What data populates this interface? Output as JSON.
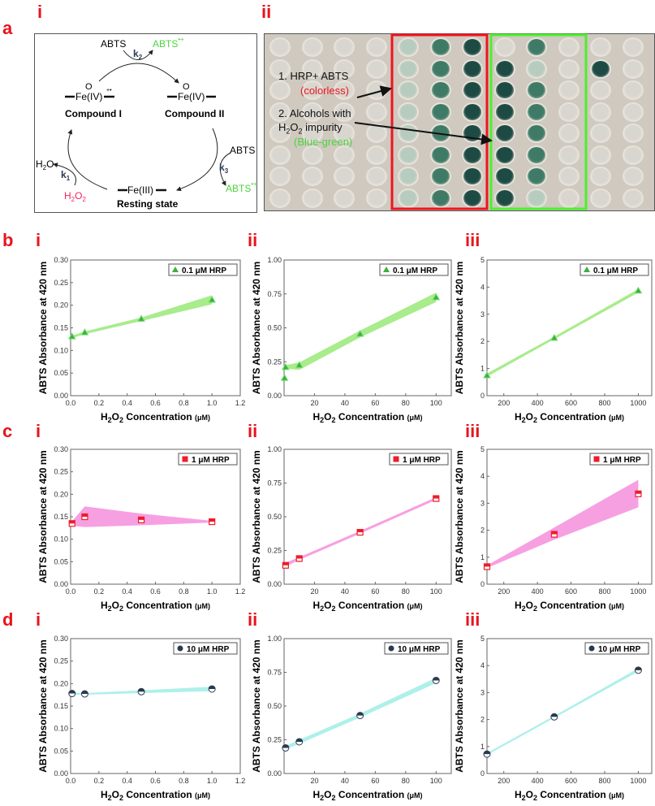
{
  "panel_labels": {
    "a": "a",
    "b": "b",
    "c": "c",
    "d": "d"
  },
  "sub_labels": [
    "i",
    "ii",
    "iii"
  ],
  "diagram": {
    "abts_top": "ABTS",
    "abts_radical_top": "ABTS",
    "radical_sup": "•+",
    "k2": "k",
    "k2_sub": "2",
    "compound1_fe": "Fe(IV)",
    "compound1_oxo": "O",
    "compound1_sup": "+•",
    "compound1_label": "Compound I",
    "compound2_fe": "Fe(IV)",
    "compound2_oxo": "O",
    "compound2_label": "Compound II",
    "abts_right": "ABTS",
    "k3": "k",
    "k3_sub": "3",
    "abts_radical_right": "ABTS",
    "resting_fe": "Fe(III)",
    "resting_label": "Resting state",
    "h2o": "H",
    "h2o_sub": "2",
    "h2o_tail": "O",
    "k1": "k",
    "k1_sub": "1",
    "h2o2_a": "H",
    "h2o2_sub1": "2",
    "h2o2_b": "O",
    "h2o2_sub2": "2",
    "colors": {
      "green": "#4cd43c",
      "red": "#f0245a",
      "k": "#2b3a55"
    }
  },
  "photo": {
    "label1": "1. HRP+ ABTS",
    "label1_note": "(colorless)",
    "label2_line1": "2. Alcohols with",
    "label2_line2_a": "H",
    "label2_line2_sub": "2",
    "label2_line2_b": "O",
    "label2_line2_sub2": "2",
    "label2_line2_c": " impurity",
    "label2_note": "(Blue-green)",
    "colors": {
      "red_box": "#f0141e",
      "green_box": "#4cf02c",
      "colorless_text": "#f0141e",
      "bluegreen_text": "#4cd43c"
    }
  },
  "axis_text": {
    "ylabel": "ABTS Absorbance at 420 nm",
    "xlabel_a": "H",
    "xlabel_sub1": "2",
    "xlabel_b": "O",
    "xlabel_sub2": "2",
    "xlabel_c": " Concentration ",
    "xlabel_unit": "(μM)"
  },
  "chart_data": [
    {
      "id": "b-i",
      "type": "scatter",
      "legend": "0.1 μM HRP",
      "legend_position": "top-right",
      "marker": "triangle",
      "color": "#3fae3f",
      "band_color": "#a8ec8c",
      "x": [
        0.01,
        0.1,
        0.5,
        1.0
      ],
      "y": [
        0.131,
        0.14,
        0.17,
        0.212
      ],
      "band": [
        [
          0.01,
          0.127,
          0.133
        ],
        [
          0.1,
          0.136,
          0.142
        ],
        [
          0.5,
          0.165,
          0.173
        ],
        [
          1.0,
          0.202,
          0.222
        ]
      ],
      "xlim": [
        0,
        1.2
      ],
      "ylim": [
        0,
        0.3
      ],
      "xticks": [
        "0.0",
        "0.2",
        "0.4",
        "0.6",
        "0.8",
        "1.0",
        "1.2"
      ],
      "yticks": [
        "0.00",
        "0.05",
        "0.10",
        "0.15",
        "0.20",
        "0.25",
        "0.30"
      ]
    },
    {
      "id": "b-ii",
      "type": "scatter",
      "legend": "0.1 μM HRP",
      "legend_position": "top-right",
      "marker": "triangle",
      "color": "#3fae3f",
      "band_color": "#a8ec8c",
      "x": [
        0.3,
        1,
        10,
        50,
        100
      ],
      "y": [
        0.13,
        0.21,
        0.225,
        0.455,
        0.725
      ],
      "band": [
        [
          1,
          0.2,
          0.225
        ],
        [
          10,
          0.19,
          0.245
        ],
        [
          50,
          0.43,
          0.48
        ],
        [
          100,
          0.69,
          0.76
        ]
      ],
      "xlim": [
        0,
        110
      ],
      "ylim": [
        0,
        1
      ],
      "xticks": [
        "20",
        "40",
        "60",
        "80",
        "100"
      ],
      "yticks": [
        "0.00",
        "0.25",
        "0.50",
        "0.75",
        "1.00"
      ]
    },
    {
      "id": "b-iii",
      "type": "scatter",
      "legend": "0.1 μM HRP",
      "legend_position": "top-right",
      "marker": "triangle",
      "color": "#3fae3f",
      "band_color": "#a8ec8c",
      "x": [
        100,
        500,
        1000
      ],
      "y": [
        0.75,
        2.13,
        3.87
      ],
      "band": [
        [
          100,
          0.7,
          0.82
        ],
        [
          500,
          2.08,
          2.18
        ],
        [
          1000,
          3.8,
          3.93
        ]
      ],
      "xlim": [
        100,
        1080
      ],
      "ylim": [
        0,
        5
      ],
      "xticks": [
        "200",
        "400",
        "600",
        "800",
        "1000"
      ],
      "yticks": [
        "0",
        "1",
        "2",
        "3",
        "4",
        "5"
      ]
    },
    {
      "id": "c-i",
      "type": "scatter",
      "legend": "1 μM HRP",
      "legend_position": "top-right",
      "marker": "square",
      "color": "#ee1c2a",
      "band_color": "#f6a0e2",
      "x": [
        0.01,
        0.1,
        0.5,
        1.0
      ],
      "y": [
        0.135,
        0.15,
        0.143,
        0.139
      ],
      "band": [
        [
          0.01,
          0.13,
          0.14
        ],
        [
          0.1,
          0.127,
          0.173
        ],
        [
          0.5,
          0.131,
          0.157
        ],
        [
          1.0,
          0.137,
          0.141
        ]
      ],
      "xlim": [
        0,
        1.2
      ],
      "ylim": [
        0,
        0.3
      ],
      "xticks": [
        "0.0",
        "0.2",
        "0.4",
        "0.6",
        "0.8",
        "1.0",
        "1.2"
      ],
      "yticks": [
        "0.00",
        "0.05",
        "0.10",
        "0.15",
        "0.20",
        "0.25",
        "0.30"
      ]
    },
    {
      "id": "c-ii",
      "type": "scatter",
      "legend": "1 μM HRP",
      "legend_position": "top-right",
      "marker": "square",
      "color": "#ee1c2a",
      "band_color": "#f6a0e2",
      "x": [
        1,
        10,
        50,
        100
      ],
      "y": [
        0.14,
        0.19,
        0.385,
        0.635
      ],
      "band": [
        [
          1,
          0.13,
          0.16
        ],
        [
          10,
          0.18,
          0.2
        ],
        [
          50,
          0.375,
          0.395
        ],
        [
          100,
          0.625,
          0.645
        ]
      ],
      "xlim": [
        0,
        110
      ],
      "ylim": [
        0,
        1
      ],
      "xticks": [
        "20",
        "40",
        "60",
        "80",
        "100"
      ],
      "yticks": [
        "0.00",
        "0.25",
        "0.50",
        "0.75",
        "1.00"
      ]
    },
    {
      "id": "c-iii",
      "type": "scatter",
      "legend": "1 μM HRP",
      "legend_position": "top-right",
      "marker": "square",
      "color": "#ee1c2a",
      "band_color": "#f6a0e2",
      "x": [
        100,
        500,
        1000
      ],
      "y": [
        0.65,
        1.85,
        3.35
      ],
      "band": [
        [
          100,
          0.6,
          0.7
        ],
        [
          500,
          1.65,
          2.1
        ],
        [
          1000,
          2.85,
          3.87
        ]
      ],
      "xlim": [
        100,
        1080
      ],
      "ylim": [
        0,
        5
      ],
      "xticks": [
        "200",
        "400",
        "600",
        "800",
        "1000"
      ],
      "yticks": [
        "0",
        "1",
        "2",
        "3",
        "4",
        "5"
      ]
    },
    {
      "id": "d-i",
      "type": "scatter",
      "legend": "10 μM HRP",
      "legend_position": "top-right",
      "marker": "circle",
      "color": "#2a3a4e",
      "band_color": "#aef0ea",
      "x": [
        0.01,
        0.1,
        0.5,
        1.0
      ],
      "y": [
        0.178,
        0.177,
        0.182,
        0.188
      ],
      "band": [
        [
          0.01,
          0.175,
          0.18
        ],
        [
          0.1,
          0.175,
          0.179
        ],
        [
          0.5,
          0.179,
          0.185
        ],
        [
          1.0,
          0.183,
          0.193
        ]
      ],
      "xlim": [
        0,
        1.2
      ],
      "ylim": [
        0,
        0.3
      ],
      "xticks": [
        "0.0",
        "0.2",
        "0.4",
        "0.6",
        "0.8",
        "1.0",
        "1.2"
      ],
      "yticks": [
        "0.00",
        "0.05",
        "0.10",
        "0.15",
        "0.20",
        "0.25",
        "0.30"
      ]
    },
    {
      "id": "d-ii",
      "type": "scatter",
      "legend": "10 μM HRP",
      "legend_position": "top-right",
      "marker": "circle",
      "color": "#2a3a4e",
      "band_color": "#aef0ea",
      "x": [
        1,
        10,
        50,
        100
      ],
      "y": [
        0.19,
        0.235,
        0.43,
        0.69
      ],
      "band": [
        [
          1,
          0.18,
          0.205
        ],
        [
          10,
          0.22,
          0.25
        ],
        [
          50,
          0.415,
          0.445
        ],
        [
          100,
          0.67,
          0.71
        ]
      ],
      "xlim": [
        0,
        110
      ],
      "ylim": [
        0,
        1
      ],
      "xticks": [
        "20",
        "40",
        "60",
        "80",
        "100"
      ],
      "yticks": [
        "0.00",
        "0.25",
        "0.50",
        "0.75",
        "1.00"
      ]
    },
    {
      "id": "d-iii",
      "type": "scatter",
      "legend": "10 μM HRP",
      "legend_position": "top-right",
      "marker": "circle",
      "color": "#2a3a4e",
      "band_color": "#aef0ea",
      "x": [
        100,
        500,
        1000
      ],
      "y": [
        0.72,
        2.1,
        3.83
      ],
      "band": [
        [
          100,
          0.68,
          0.76
        ],
        [
          500,
          2.06,
          2.14
        ],
        [
          1000,
          3.78,
          3.9
        ]
      ],
      "xlim": [
        100,
        1080
      ],
      "ylim": [
        0,
        5
      ],
      "xticks": [
        "200",
        "400",
        "600",
        "800",
        "1000"
      ],
      "yticks": [
        "0",
        "1",
        "2",
        "3",
        "4",
        "5"
      ]
    }
  ]
}
